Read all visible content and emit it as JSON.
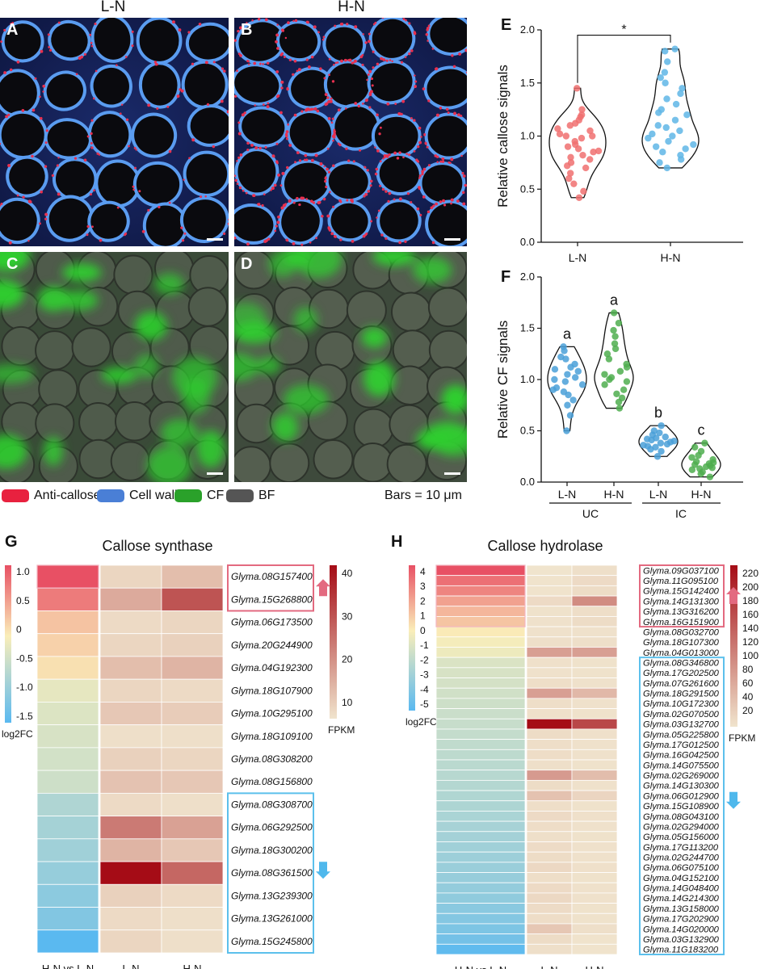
{
  "panel_labels": {
    "A": "A",
    "B": "B",
    "C": "C",
    "D": "D",
    "E": "E",
    "F": "F",
    "G": "G",
    "H": "H"
  },
  "columns": {
    "left": "L-N",
    "right": "H-N"
  },
  "legend": {
    "items": [
      {
        "label": "Anti-callose",
        "color": "#e8213f"
      },
      {
        "label": "Cell wall",
        "color": "#4a7fd6"
      },
      {
        "label": "CF",
        "color": "#2aa12a"
      },
      {
        "label": "BF",
        "color": "#555555"
      }
    ],
    "scale_note": "Bars = 10 μm"
  },
  "chart_data": [
    {
      "type": "violin",
      "panel": "E",
      "ylabel": "Relative callose signals",
      "ylim": [
        0,
        2.0
      ],
      "yticks": [
        "0.0",
        "0.5",
        "1.0",
        "1.5",
        "2.0"
      ],
      "categories": [
        "L-N",
        "H-N"
      ],
      "significance": "*",
      "series": [
        {
          "name": "L-N",
          "color": "#f07070",
          "values": [
            0.42,
            0.48,
            0.55,
            0.6,
            0.65,
            0.7,
            0.72,
            0.75,
            0.78,
            0.8,
            0.82,
            0.85,
            0.86,
            0.88,
            0.9,
            0.92,
            0.95,
            0.98,
            1.0,
            1.0,
            1.02,
            1.05,
            1.07,
            1.1,
            1.12,
            1.15,
            1.18,
            1.2,
            1.25,
            1.45
          ]
        },
        {
          "name": "H-N",
          "color": "#5fb6e6",
          "values": [
            0.7,
            0.75,
            0.78,
            0.82,
            0.85,
            0.88,
            0.9,
            0.92,
            0.95,
            0.98,
            1.0,
            1.02,
            1.05,
            1.08,
            1.1,
            1.15,
            1.2,
            1.22,
            1.25,
            1.3,
            1.35,
            1.4,
            1.45,
            1.5,
            1.55,
            1.6,
            1.7,
            1.8,
            1.82
          ]
        }
      ]
    },
    {
      "type": "violin",
      "panel": "F",
      "ylabel": "Relative CF signals",
      "ylim": [
        0,
        2.0
      ],
      "yticks": [
        "0.0",
        "0.5",
        "1.0",
        "1.5",
        "2.0"
      ],
      "categories": [
        "L-N",
        "H-N",
        "L-N",
        "H-N"
      ],
      "groups": [
        {
          "label": "UC"
        },
        {
          "label": "IC"
        }
      ],
      "letters": [
        "a",
        "a",
        "b",
        "c"
      ],
      "series": [
        {
          "name": "UC L-N",
          "color": "#4aa0d8",
          "values": [
            0.5,
            0.65,
            0.75,
            0.8,
            0.85,
            0.88,
            0.9,
            0.92,
            0.95,
            0.98,
            1.0,
            1.02,
            1.05,
            1.08,
            1.1,
            1.12,
            1.15,
            1.2,
            1.22,
            1.28,
            1.32
          ]
        },
        {
          "name": "UC H-N",
          "color": "#4fae4f",
          "values": [
            0.72,
            0.78,
            0.82,
            0.86,
            0.9,
            0.95,
            0.98,
            1.0,
            1.02,
            1.05,
            1.08,
            1.12,
            1.15,
            1.2,
            1.25,
            1.3,
            1.35,
            1.42,
            1.48,
            1.55,
            1.65
          ]
        },
        {
          "name": "IC L-N",
          "color": "#4aa0d8",
          "values": [
            0.25,
            0.3,
            0.32,
            0.34,
            0.35,
            0.36,
            0.37,
            0.38,
            0.39,
            0.4,
            0.41,
            0.42,
            0.43,
            0.44,
            0.46,
            0.48,
            0.5,
            0.55
          ]
        },
        {
          "name": "IC H-N",
          "color": "#4fae4f",
          "values": [
            0.05,
            0.08,
            0.1,
            0.12,
            0.13,
            0.14,
            0.15,
            0.16,
            0.17,
            0.18,
            0.19,
            0.2,
            0.22,
            0.24,
            0.26,
            0.3,
            0.34,
            0.38
          ]
        }
      ]
    },
    {
      "type": "heatmap",
      "panel": "G",
      "title": "Callose synthase",
      "columns": [
        "H-N vs L-N",
        "L-N",
        "H-N"
      ],
      "colorbar_log2fc": {
        "ticks": [
          "1.0",
          "0.5",
          "0",
          "-0.5",
          "-1.0",
          "-1.5"
        ],
        "label": "log2FC"
      },
      "colorbar_fpkm": {
        "ticks": [
          "40",
          "30",
          "20",
          "10"
        ],
        "label": "FPKM"
      },
      "rows": [
        {
          "gene": "Glyma.08G157400",
          "log2fc": 1.1,
          "ln": 3,
          "hn": 8
        },
        {
          "gene": "Glyma.15G268800",
          "log2fc": 0.8,
          "ln": 12,
          "hn": 30
        },
        {
          "gene": "Glyma.06G173500",
          "log2fc": 0.3,
          "ln": 2,
          "hn": 3
        },
        {
          "gene": "Glyma.20G244900",
          "log2fc": 0.2,
          "ln": 3,
          "hn": 4
        },
        {
          "gene": "Glyma.04G192300",
          "log2fc": 0.1,
          "ln": 8,
          "hn": 10
        },
        {
          "gene": "Glyma.18G107900",
          "log2fc": -0.2,
          "ln": 3,
          "hn": 2
        },
        {
          "gene": "Glyma.10G295100",
          "log2fc": -0.3,
          "ln": 6,
          "hn": 5
        },
        {
          "gene": "Glyma.18G109100",
          "log2fc": -0.35,
          "ln": 1,
          "hn": 1
        },
        {
          "gene": "Glyma.08G308200",
          "log2fc": -0.4,
          "ln": 4,
          "hn": 3
        },
        {
          "gene": "Glyma.08G156800",
          "log2fc": -0.45,
          "ln": 7,
          "hn": 6
        },
        {
          "gene": "Glyma.08G308700",
          "log2fc": -0.75,
          "ln": 2,
          "hn": 1
        },
        {
          "gene": "Glyma.06G292500",
          "log2fc": -0.85,
          "ln": 22,
          "hn": 14
        },
        {
          "gene": "Glyma.18G300200",
          "log2fc": -0.9,
          "ln": 10,
          "hn": 6
        },
        {
          "gene": "Glyma.08G361500",
          "log2fc": -1.0,
          "ln": 45,
          "hn": 26
        },
        {
          "gene": "Glyma.13G239300",
          "log2fc": -1.1,
          "ln": 4,
          "hn": 2
        },
        {
          "gene": "Glyma.13G261000",
          "log2fc": -1.2,
          "ln": 2,
          "hn": 1
        },
        {
          "gene": "Glyma.15G245800",
          "log2fc": -1.6,
          "ln": 3,
          "hn": 1
        }
      ],
      "up_group_size": 2
    },
    {
      "type": "heatmap",
      "panel": "H",
      "title": "Callose hydrolase",
      "columns": [
        "H-N vs L-N",
        "L-N",
        "H-N"
      ],
      "colorbar_log2fc": {
        "ticks": [
          "4",
          "3",
          "2",
          "1",
          "0",
          "-1",
          "-2",
          "-3",
          "-4",
          "-5"
        ],
        "label": "log2FC"
      },
      "colorbar_fpkm": {
        "ticks": [
          "220",
          "200",
          "180",
          "160",
          "140",
          "120",
          "100",
          "80",
          "60",
          "40",
          "20"
        ],
        "label": "FPKM"
      },
      "rows": [
        {
          "gene": "Glyma.09G037100",
          "log2fc": 4.5,
          "ln": 0,
          "hn": 5
        },
        {
          "gene": "Glyma.11G095100",
          "log2fc": 3.6,
          "ln": 1,
          "hn": 10
        },
        {
          "gene": "Glyma.15G142400",
          "log2fc": 3.0,
          "ln": 1,
          "hn": 8
        },
        {
          "gene": "Glyma.14G131300",
          "log2fc": 2.2,
          "ln": 10,
          "hn": 90
        },
        {
          "gene": "Glyma.13G316200",
          "log2fc": 1.6,
          "ln": 2,
          "hn": 6
        },
        {
          "gene": "Glyma.16G151900",
          "log2fc": 1.2,
          "ln": 3,
          "hn": 8
        },
        {
          "gene": "Glyma.08G032700",
          "log2fc": 0.1,
          "ln": 3,
          "hn": 3
        },
        {
          "gene": "Glyma.18G107300",
          "log2fc": -0.2,
          "ln": 5,
          "hn": 5
        },
        {
          "gene": "Glyma.04G013000",
          "log2fc": -0.4,
          "ln": 70,
          "hn": 70
        },
        {
          "gene": "Glyma.08G346800",
          "log2fc": -1.0,
          "ln": 4,
          "hn": 2
        },
        {
          "gene": "Glyma.17G202500",
          "log2fc": -1.1,
          "ln": 3,
          "hn": 2
        },
        {
          "gene": "Glyma.07G261600",
          "log2fc": -1.2,
          "ln": 6,
          "hn": 3
        },
        {
          "gene": "Glyma.18G291500",
          "log2fc": -1.3,
          "ln": 70,
          "hn": 45
        },
        {
          "gene": "Glyma.10G172300",
          "log2fc": -1.4,
          "ln": 6,
          "hn": 3
        },
        {
          "gene": "Glyma.02G070500",
          "log2fc": -1.5,
          "ln": 4,
          "hn": 2
        },
        {
          "gene": "Glyma.03G132700",
          "log2fc": -1.6,
          "ln": 220,
          "hn": 160
        },
        {
          "gene": "Glyma.05G225800",
          "log2fc": -1.7,
          "ln": 8,
          "hn": 4
        },
        {
          "gene": "Glyma.17G012500",
          "log2fc": -1.8,
          "ln": 6,
          "hn": 3
        },
        {
          "gene": "Glyma.16G042500",
          "log2fc": -1.9,
          "ln": 7,
          "hn": 3
        },
        {
          "gene": "Glyma.14G075500",
          "log2fc": -2.0,
          "ln": 5,
          "hn": 2
        },
        {
          "gene": "Glyma.02G269000",
          "log2fc": -2.1,
          "ln": 75,
          "hn": 40
        },
        {
          "gene": "Glyma.14G130300",
          "log2fc": -2.2,
          "ln": 8,
          "hn": 3
        },
        {
          "gene": "Glyma.06G012900",
          "log2fc": -2.3,
          "ln": 35,
          "hn": 15
        },
        {
          "gene": "Glyma.15G108900",
          "log2fc": -2.4,
          "ln": 6,
          "hn": 2
        },
        {
          "gene": "Glyma.08G043100",
          "log2fc": -2.5,
          "ln": 10,
          "hn": 4
        },
        {
          "gene": "Glyma.02G294000",
          "log2fc": -2.6,
          "ln": 7,
          "hn": 3
        },
        {
          "gene": "Glyma.05G156000",
          "log2fc": -2.7,
          "ln": 5,
          "hn": 2
        },
        {
          "gene": "Glyma.17G113200",
          "log2fc": -2.8,
          "ln": 9,
          "hn": 3
        },
        {
          "gene": "Glyma.02G244700",
          "log2fc": -2.9,
          "ln": 8,
          "hn": 3
        },
        {
          "gene": "Glyma.06G075100",
          "log2fc": -3.0,
          "ln": 12,
          "hn": 4
        },
        {
          "gene": "Glyma.04G152100",
          "log2fc": -3.1,
          "ln": 6,
          "hn": 2
        },
        {
          "gene": "Glyma.14G048400",
          "log2fc": -3.2,
          "ln": 10,
          "hn": 3
        },
        {
          "gene": "Glyma.14G214300",
          "log2fc": -3.3,
          "ln": 12,
          "hn": 3
        },
        {
          "gene": "Glyma.13G158000",
          "log2fc": -3.5,
          "ln": 9,
          "hn": 2
        },
        {
          "gene": "Glyma.17G202900",
          "log2fc": -3.7,
          "ln": 7,
          "hn": 2
        },
        {
          "gene": "Glyma.14G020000",
          "log2fc": -3.9,
          "ln": 30,
          "hn": 5
        },
        {
          "gene": "Glyma.03G132900",
          "log2fc": -4.2,
          "ln": 8,
          "hn": 1
        },
        {
          "gene": "Glyma.11G183200",
          "log2fc": -4.8,
          "ln": 5,
          "hn": 1
        }
      ],
      "up_group_size": 6,
      "down_start": 9
    }
  ]
}
